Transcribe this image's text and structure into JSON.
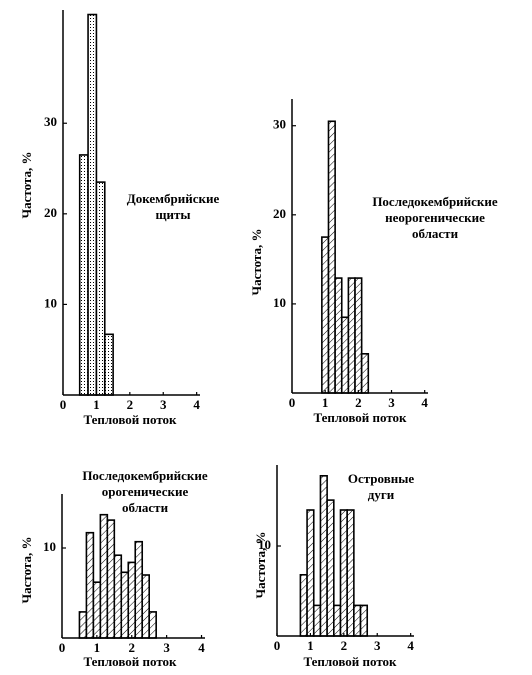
{
  "chart_data": [
    {
      "type": "histogram",
      "title": [
        "Докембрийские",
        "щиты"
      ],
      "x_label": "Тепловой поток",
      "y_label": "Частота, %",
      "bins": [
        0.5,
        0.75,
        1.0,
        1.25,
        1.5
      ],
      "values": [
        26.5,
        42,
        23.5,
        6.7
      ],
      "color": "#000000",
      "xlim": [
        0,
        4.1
      ],
      "xticks": [
        0,
        1,
        2,
        3,
        4
      ],
      "ylim": [
        0,
        42.5
      ],
      "yticks": [
        10,
        20,
        30
      ]
    },
    {
      "type": "histogram",
      "title": [
        "Последокембрийские",
        "неорогенические",
        "области"
      ],
      "x_label": "Тепловой поток",
      "y_label": "Частота, %",
      "bins": [
        0.9,
        1.1,
        1.3,
        1.5,
        1.7,
        1.9,
        2.1,
        2.3
      ],
      "values": [
        17.5,
        30.5,
        12.9,
        8.5,
        12.9,
        12.9,
        4.4
      ],
      "color": "#000000",
      "xlim": [
        0,
        4.1
      ],
      "xticks": [
        0,
        1,
        2,
        3,
        4
      ],
      "ylim": [
        0,
        33
      ],
      "yticks": [
        10,
        20,
        30
      ]
    },
    {
      "type": "histogram",
      "title": [
        "Последокембрийские",
        "орогенические",
        "области"
      ],
      "x_label": "Тепловой поток",
      "y_label": "Частота, %",
      "bins": [
        0.5,
        0.7,
        0.9,
        1.1,
        1.3,
        1.5,
        1.7,
        1.9,
        2.1,
        2.3,
        2.5,
        2.7
      ],
      "values": [
        2.9,
        11.7,
        6.2,
        13.7,
        13.1,
        9.2,
        7.3,
        8.4,
        10.7,
        7,
        2.9
      ],
      "color": "#000000",
      "xlim": [
        0,
        4.1
      ],
      "xticks": [
        0,
        1,
        2,
        3,
        4
      ],
      "ylim": [
        0,
        16
      ],
      "yticks": [
        10
      ]
    },
    {
      "type": "histogram",
      "title": [
        "Островные",
        "дуги"
      ],
      "x_label": "Тепловой поток",
      "y_label": "Частота, %",
      "bins": [
        0.7,
        0.9,
        1.1,
        1.3,
        1.5,
        1.7,
        1.9,
        2.1,
        2.3,
        2.5,
        2.7
      ],
      "values": [
        6.8,
        14,
        3.4,
        17.8,
        15.1,
        3.4,
        14,
        14,
        3.4,
        3.4
      ],
      "color": "#000000",
      "xlim": [
        0,
        4.1
      ],
      "xticks": [
        0,
        1,
        2,
        3,
        4
      ],
      "ylim": [
        0,
        19
      ],
      "yticks": [
        10
      ]
    }
  ]
}
